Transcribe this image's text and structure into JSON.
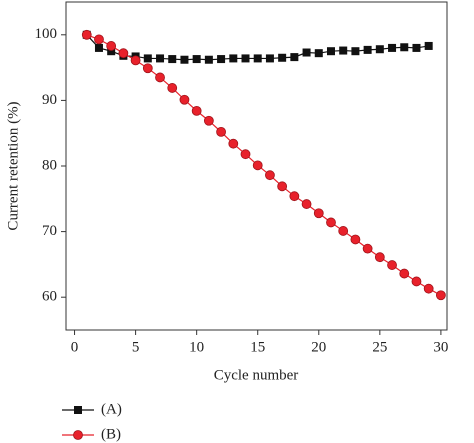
{
  "chart_data": {
    "type": "line",
    "x_label": "Cycle number",
    "y_label": "Current retention (%)",
    "x": [
      1,
      2,
      3,
      4,
      5,
      6,
      7,
      8,
      9,
      10,
      11,
      12,
      13,
      14,
      15,
      16,
      17,
      18,
      19,
      20,
      21,
      22,
      23,
      24,
      25,
      26,
      27,
      28,
      29,
      30
    ],
    "series": [
      {
        "name": "(A)",
        "color": "#111111",
        "marker": "square",
        "values": [
          100,
          98,
          97.5,
          96.8,
          96.7,
          96.4,
          96.4,
          96.3,
          96.2,
          96.3,
          96.2,
          96.3,
          96.4,
          96.4,
          96.4,
          96.4,
          96.5,
          96.6,
          97.3,
          97.2,
          97.5,
          97.6,
          97.5,
          97.7,
          97.8,
          98.0,
          98.1,
          98.0,
          98.3,
          null
        ]
      },
      {
        "name": "(B)",
        "color": "#e8212b",
        "marker": "circle",
        "values": [
          100,
          99.3,
          98.3,
          97.2,
          96.1,
          94.9,
          93.5,
          91.9,
          90.1,
          88.4,
          86.9,
          85.2,
          83.4,
          81.8,
          80.1,
          78.6,
          76.9,
          75.4,
          74.2,
          72.8,
          71.4,
          70.1,
          68.8,
          67.4,
          66.1,
          64.9,
          63.6,
          62.4,
          61.3,
          60.3
        ]
      }
    ],
    "xlim": [
      -0.7,
      30.5
    ],
    "xticks": [
      0,
      5,
      10,
      15,
      20,
      25,
      30
    ],
    "ylim": [
      55,
      105
    ],
    "yticks": [
      60,
      70,
      80,
      90,
      100
    ]
  }
}
